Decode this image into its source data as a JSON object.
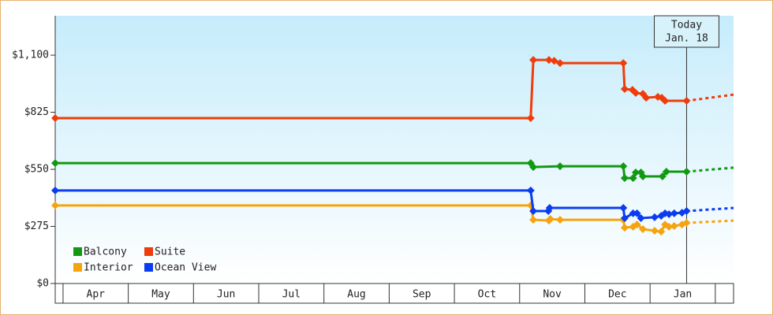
{
  "chart_data": {
    "type": "line",
    "xlim": [
      -0.12,
      10.28
    ],
    "ylim": [
      0,
      1290
    ],
    "xticks": [
      {
        "value": 0.5,
        "label": "Apr"
      },
      {
        "value": 1.5,
        "label": "May"
      },
      {
        "value": 2.5,
        "label": "Jun"
      },
      {
        "value": 3.5,
        "label": "Jul"
      },
      {
        "value": 4.5,
        "label": "Aug"
      },
      {
        "value": 5.5,
        "label": "Sep"
      },
      {
        "value": 6.5,
        "label": "Oct"
      },
      {
        "value": 7.5,
        "label": "Nov"
      },
      {
        "value": 8.5,
        "label": "Dec"
      },
      {
        "value": 9.5,
        "label": "Jan"
      }
    ],
    "yticks": [
      {
        "value": 0,
        "label": "$0"
      },
      {
        "value": 275,
        "label": "$275"
      },
      {
        "value": 550,
        "label": "$550"
      },
      {
        "value": 825,
        "label": "$825"
      },
      {
        "value": 1100,
        "label": "$1,100"
      }
    ],
    "annotation": {
      "x": 9.56,
      "text": [
        "Today",
        "Jan. 18"
      ]
    },
    "series": [
      {
        "name": "Balcony",
        "color": "#119911",
        "x": [
          -0.12,
          7.17,
          7.21,
          7.62,
          8.59,
          8.61,
          8.74,
          8.78,
          8.86,
          8.89,
          9.19,
          9.25,
          9.56
        ],
        "values": [
          580,
          580,
          561,
          565,
          565,
          508,
          508,
          535,
          535,
          516,
          516,
          539,
          539
        ],
        "forecast": {
          "x": [
            9.56,
            10.28
          ],
          "values": [
            539,
            558
          ]
        }
      },
      {
        "name": "Suite",
        "color": "#f03c0a",
        "x": [
          -0.12,
          7.17,
          7.21,
          7.45,
          7.53,
          7.62,
          8.59,
          8.61,
          8.73,
          8.78,
          8.89,
          8.94,
          9.12,
          9.18,
          9.23,
          9.56
        ],
        "values": [
          797,
          797,
          1077,
          1077,
          1073,
          1062,
          1062,
          937,
          933,
          918,
          914,
          895,
          899,
          895,
          880,
          880
        ],
        "forecast": {
          "x": [
            9.56,
            10.28
          ],
          "values": [
            880,
            910
          ]
        }
      },
      {
        "name": "Interior",
        "color": "#f5a40f",
        "x": [
          -0.12,
          7.17,
          7.21,
          7.45,
          7.47,
          7.62,
          8.59,
          8.61,
          8.74,
          8.8,
          8.89,
          9.07,
          9.17,
          9.23,
          9.29,
          9.37,
          9.49,
          9.56
        ],
        "values": [
          376,
          376,
          307,
          303,
          311,
          307,
          307,
          269,
          273,
          284,
          262,
          254,
          250,
          284,
          273,
          277,
          284,
          292
        ],
        "forecast": {
          "x": [
            9.56,
            10.28
          ],
          "values": [
            292,
            303
          ]
        }
      },
      {
        "name": "Ocean View",
        "color": "#0a3cf0",
        "x": [
          -0.12,
          7.17,
          7.21,
          7.44,
          7.46,
          8.59,
          8.61,
          8.74,
          8.8,
          8.86,
          9.07,
          9.17,
          9.23,
          9.29,
          9.37,
          9.49,
          9.56
        ],
        "values": [
          448,
          448,
          349,
          349,
          364,
          364,
          315,
          338,
          338,
          315,
          319,
          326,
          338,
          334,
          338,
          341,
          349
        ],
        "forecast": {
          "x": [
            9.56,
            10.28
          ],
          "values": [
            349,
            364
          ]
        }
      }
    ]
  }
}
